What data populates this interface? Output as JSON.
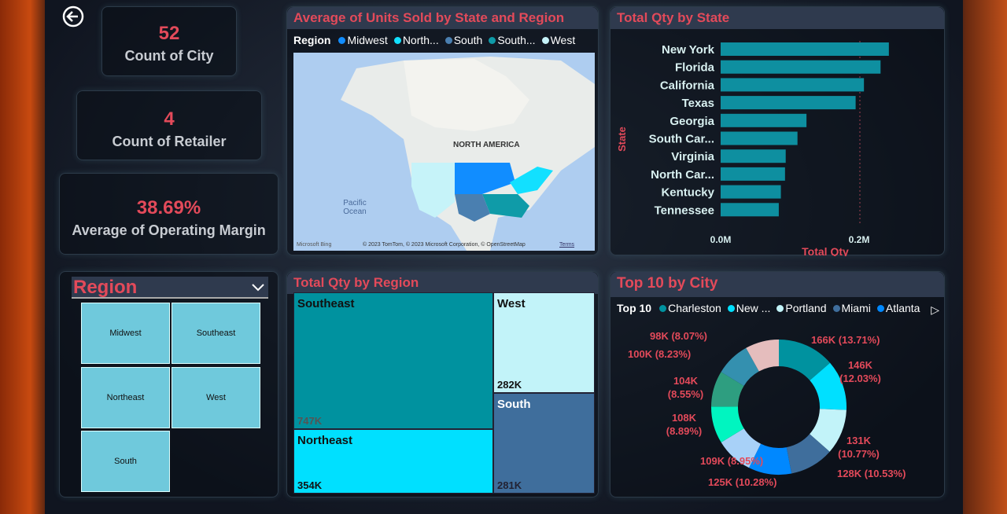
{
  "kpis": {
    "city": {
      "value": "52",
      "label": "Count of City"
    },
    "retailer": {
      "value": "4",
      "label": "Count of Retailer"
    },
    "margin": {
      "value": "38.69%",
      "label": "Average of Operating Margin"
    }
  },
  "slicer": {
    "title": "Region",
    "items": [
      "Midwest",
      "Southeast",
      "Northeast",
      "West",
      "South"
    ]
  },
  "map": {
    "title": "Average of Units Sold by State and Region",
    "legend_title": "Region",
    "legend": [
      {
        "label": "Midwest",
        "color": "#118DFF"
      },
      {
        "label": "North...",
        "color": "#12E0FF"
      },
      {
        "label": "South",
        "color": "#4A7FB0"
      },
      {
        "label": "South...",
        "color": "#0F9BA8"
      },
      {
        "label": "West",
        "color": "#C6F3F9"
      }
    ],
    "labels": {
      "continent": "NORTH AMERICA",
      "ocean": "Pacific Ocean",
      "logo": "Microsoft Bing",
      "credits": "© 2023 TomTom, © 2023 Microsoft Corporation, © OpenStreetMap",
      "terms": "Terms"
    }
  },
  "bar": {
    "title": "Total Qty by State",
    "ylabel": "State",
    "xlabel": "Total Qty",
    "ticks": [
      "0.0M",
      "0.2M"
    ],
    "chart_data": {
      "type": "bar",
      "orientation": "horizontal",
      "title": "Total Qty by State",
      "xlabel": "Total Qty",
      "ylabel": "State",
      "xlim": [
        0,
        0.27
      ],
      "categories": [
        "New York",
        "Florida",
        "California",
        "Texas",
        "Georgia",
        "South Car...",
        "Virginia",
        "North Car...",
        "Kentucky",
        "Tennessee"
      ],
      "values": [
        0.243,
        0.231,
        0.207,
        0.195,
        0.124,
        0.111,
        0.094,
        0.093,
        0.087,
        0.084
      ],
      "color": "#0E8FA0"
    }
  },
  "treemap": {
    "title": "Total Qty by Region",
    "chart_data": {
      "type": "treemap",
      "categories": [
        "Southeast",
        "Northeast",
        "West",
        "South"
      ],
      "values": [
        "747K",
        "354K",
        "282K",
        "281K"
      ]
    }
  },
  "donut": {
    "title": "Top 10 by City",
    "legend_title": "Top 10",
    "legend": [
      {
        "label": "Charleston",
        "color": "#00929F"
      },
      {
        "label": "New ...",
        "color": "#00E0FF"
      },
      {
        "label": "Portland",
        "color": "#C2F3F9"
      },
      {
        "label": "Miami",
        "color": "#3F6E9C"
      },
      {
        "label": "Atlanta",
        "color": "#0088FF"
      }
    ],
    "chart_data": {
      "type": "pie",
      "donut": true,
      "values": [
        166,
        146,
        131,
        128,
        125,
        109,
        108,
        104,
        100,
        98
      ],
      "labels": [
        "166K (13.71%)",
        "146K (12.03%)",
        "131K (10.77%)",
        "128K (10.53%)",
        "125K (10.28%)",
        "109K (8.95%)",
        "108K (8.89%)",
        "104K (8.55%)",
        "100K (8.23%)",
        "98K (8.07%)"
      ],
      "colors": [
        "#00929F",
        "#00E0FF",
        "#C2F3F9",
        "#3F6E9C",
        "#0088FF",
        "#A8D1F8",
        "#00F5C0",
        "#2E9E80",
        "#3490AF",
        "#E5BDBD"
      ]
    }
  }
}
